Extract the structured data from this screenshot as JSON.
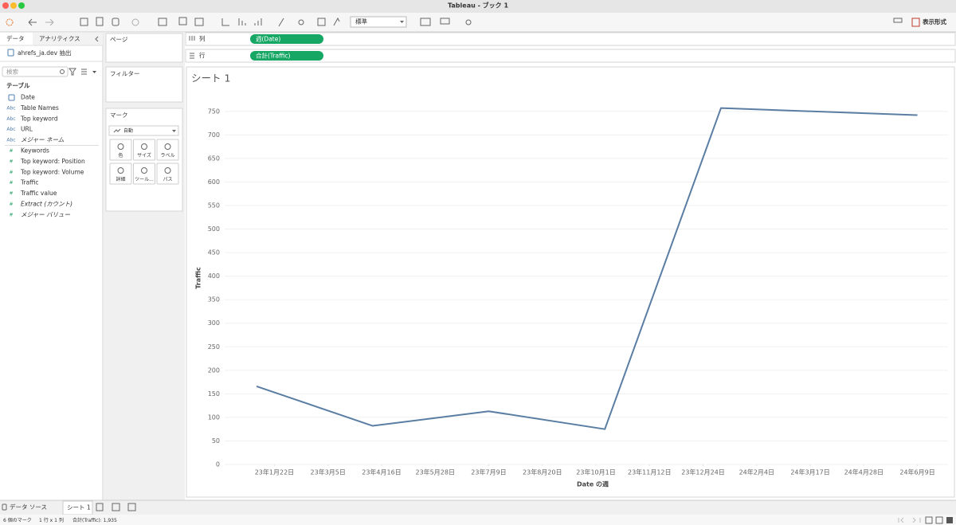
{
  "window": {
    "title": "Tableau - ブック 1"
  },
  "toolbar": {
    "fit": "標準",
    "show_me": "表示形式"
  },
  "data_pane": {
    "tabs": [
      "データ",
      "アナリティクス"
    ],
    "source": "ahrefs_ja.dev 抽出",
    "search_placeholder": "検索",
    "section": "テーブル",
    "fields": [
      {
        "name": "Date"
      },
      {
        "icon": "Abc",
        "name": "Table Names"
      },
      {
        "icon": "Abc",
        "name": "Top keyword"
      },
      {
        "icon": "Abc",
        "name": "URL"
      },
      {
        "icon": "Abc",
        "name": "メジャー ネーム",
        "italic": true
      },
      {
        "icon": "#",
        "name": "Keywords"
      },
      {
        "icon": "#",
        "name": "Top keyword: Position"
      },
      {
        "icon": "#",
        "name": "Top keyword: Volume"
      },
      {
        "icon": "#",
        "name": "Traffic"
      },
      {
        "icon": "#",
        "name": "Traffic value"
      },
      {
        "icon": "#",
        "name": "Extract (カウント)",
        "italic": true
      },
      {
        "icon": "#",
        "name": "メジャー バリュー",
        "italic": true
      }
    ]
  },
  "cards": {
    "pages": "ページ",
    "filters": "フィルター",
    "marks": "マーク",
    "mark_type": "自動",
    "mark_buttons": [
      "色",
      "サイズ",
      "ラベル",
      "詳細",
      "ツール...",
      "パス"
    ]
  },
  "shelves": [
    {
      "label": "列",
      "pill": "週(Date)"
    },
    {
      "label": "行",
      "pill": "合計(Traffic)"
    }
  ],
  "chart_data": {
    "type": "line",
    "title": "シート 1",
    "x_label": "Date の週",
    "y_label": "Traffic",
    "x": [
      "2023-01-08",
      "2023-04-09",
      "2023-07-09",
      "2023-10-08",
      "2024-01-07",
      "2024-06-09"
    ],
    "values": [
      166,
      82,
      113,
      75,
      757,
      742
    ],
    "color": "#5a7ea3",
    "xlim": [
      "2022-12-14",
      "2024-07-03"
    ],
    "xticks": [
      {
        "value": "2023-01-22",
        "label": "23年1月22日"
      },
      {
        "value": "2023-03-05",
        "label": "23年3月5日"
      },
      {
        "value": "2023-04-16",
        "label": "23年4月16日"
      },
      {
        "value": "2023-05-28",
        "label": "23年5月28日"
      },
      {
        "value": "2023-07-09",
        "label": "23年7月9日"
      },
      {
        "value": "2023-08-20",
        "label": "23年8月20日"
      },
      {
        "value": "2023-10-01",
        "label": "23年10月1日"
      },
      {
        "value": "2023-11-12",
        "label": "23年11月12日"
      },
      {
        "value": "2023-12-24",
        "label": "23年12月24日"
      },
      {
        "value": "2024-02-04",
        "label": "24年2月4日"
      },
      {
        "value": "2024-03-17",
        "label": "24年3月17日"
      },
      {
        "value": "2024-04-28",
        "label": "24年4月28日"
      },
      {
        "value": "2024-06-09",
        "label": "24年6月9日"
      }
    ],
    "ylim": [
      0,
      770
    ],
    "yticks": [
      0,
      50,
      100,
      150,
      200,
      250,
      300,
      350,
      400,
      450,
      500,
      550,
      600,
      650,
      700,
      750
    ],
    "grid": true
  },
  "sheet_tabs": [
    "データ ソース",
    "シート 1"
  ],
  "status": [
    "6 個のマーク",
    "1 行 x 1 列",
    "合計(Traffic): 1,935"
  ]
}
